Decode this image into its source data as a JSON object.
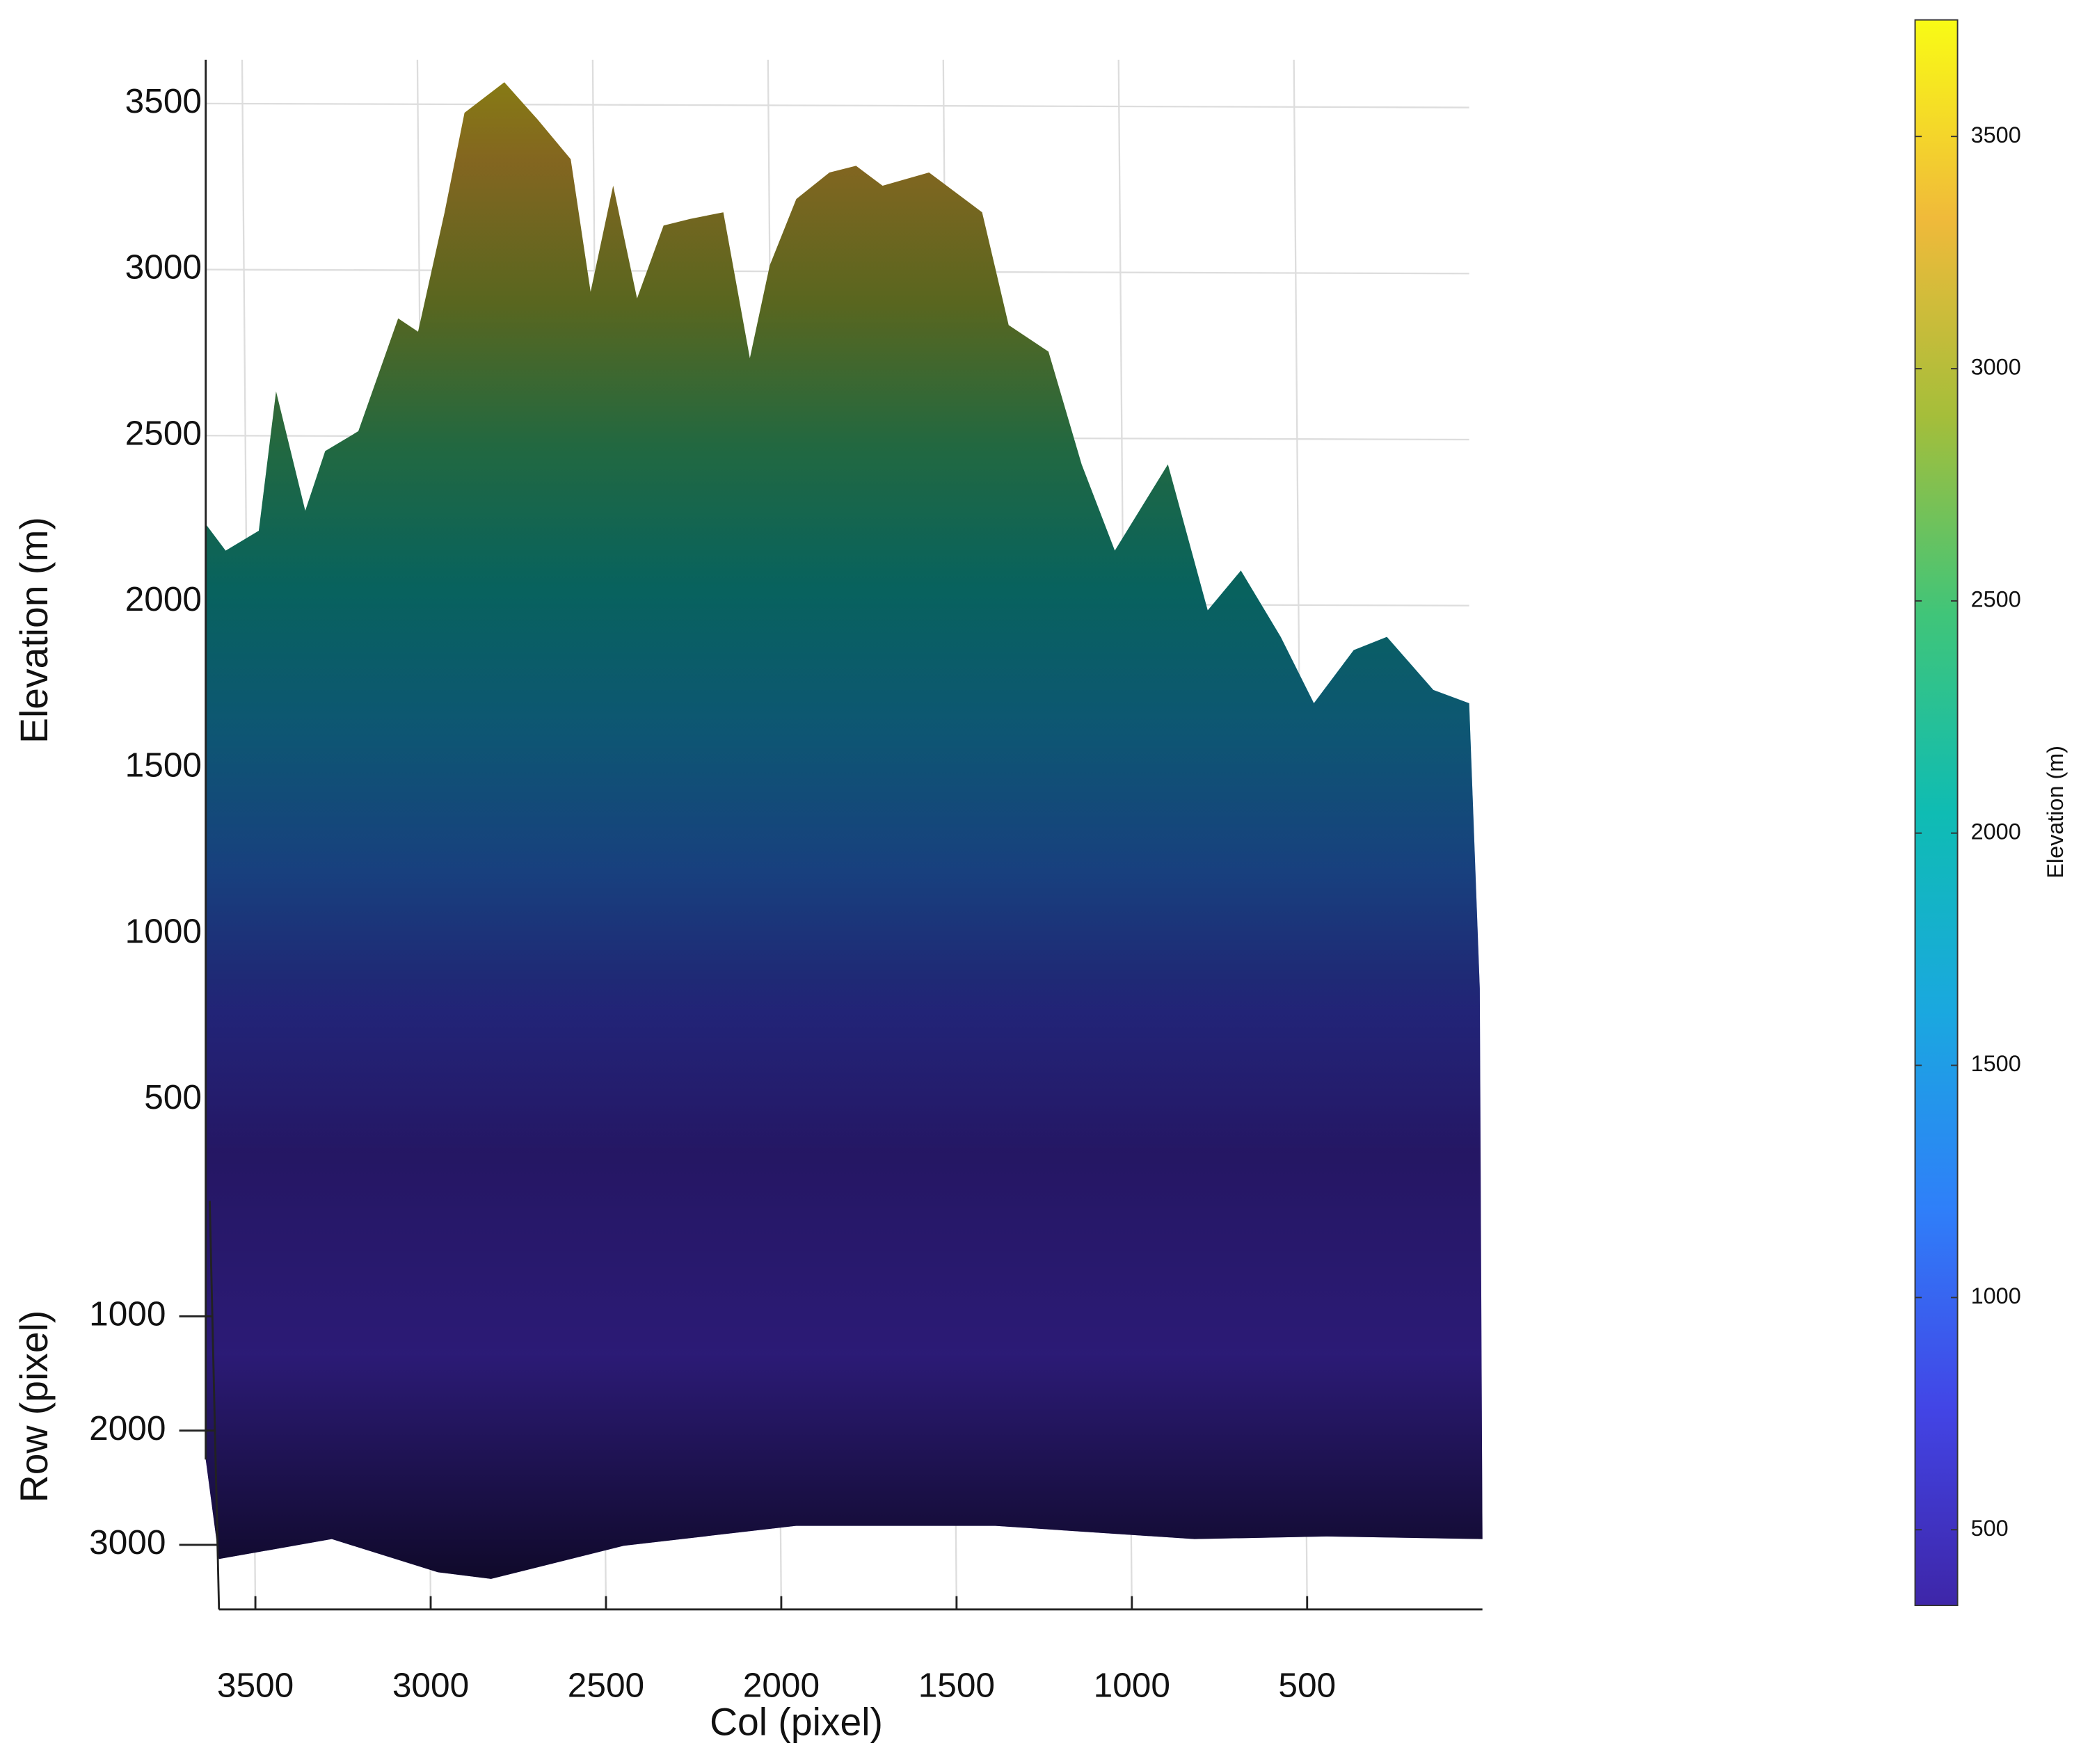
{
  "chart_data": {
    "type": "surface",
    "xlabel": "Col (pixel)",
    "ylabel": "Row (pixel)",
    "zlabel": "Elevation (m)",
    "xlim": [
      3600,
      0
    ],
    "xticks": [
      3500,
      3000,
      2500,
      2000,
      1500,
      1000,
      500
    ],
    "ylim": [
      0,
      3600
    ],
    "yticks": [
      1000,
      2000,
      3000
    ],
    "zlim": [
      0,
      3600
    ],
    "zticks": [
      500,
      1000,
      1500,
      2000,
      2500,
      3000,
      3500
    ],
    "grid": true,
    "colorbar": {
      "label": "Elevation (m)",
      "clim": [
        337,
        3751
      ],
      "ticks": [
        500,
        1000,
        1500,
        2000,
        2500,
        3000,
        3500
      ],
      "colormap": [
        "#3e26a8",
        "#4245e6",
        "#2f7ff9",
        "#1aa8df",
        "#0fbcb3",
        "#40c579",
        "#a5be3a",
        "#f0ba3a",
        "#f9fb15"
      ]
    }
  }
}
